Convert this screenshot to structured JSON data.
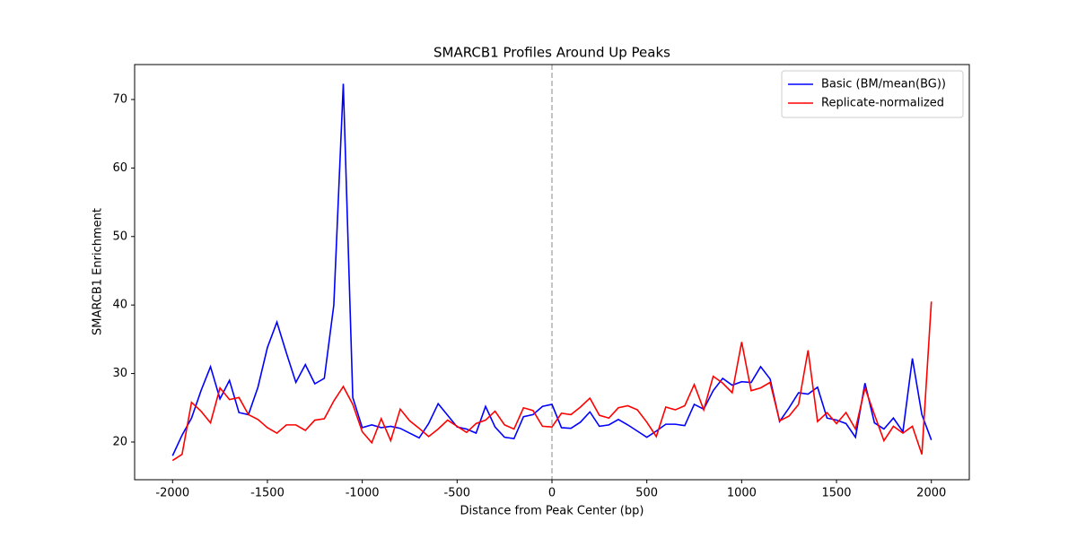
{
  "chart_data": {
    "type": "line",
    "title": "SMARCB1 Profiles Around Up Peaks",
    "x_label": "Distance from Peak Center (bp)",
    "y_label": "SMARCB1 Enrichment",
    "x": [
      -2000,
      -1950,
      -1900,
      -1850,
      -1800,
      -1750,
      -1700,
      -1650,
      -1600,
      -1550,
      -1500,
      -1450,
      -1400,
      -1350,
      -1300,
      -1250,
      -1200,
      -1150,
      -1100,
      -1050,
      -1000,
      -950,
      -900,
      -850,
      -800,
      -750,
      -700,
      -650,
      -600,
      -550,
      -500,
      -450,
      -400,
      -350,
      -300,
      -250,
      -200,
      -150,
      -100,
      -50,
      0,
      50,
      100,
      150,
      200,
      250,
      300,
      350,
      400,
      450,
      500,
      550,
      600,
      650,
      700,
      750,
      800,
      850,
      900,
      950,
      1000,
      1050,
      1100,
      1150,
      1200,
      1250,
      1300,
      1350,
      1400,
      1450,
      1500,
      1550,
      1600,
      1650,
      1700,
      1750,
      1800,
      1850,
      1900,
      1950,
      2000
    ],
    "series": [
      {
        "name": "Basic (BM/mean(BG))",
        "color": "#0000ff",
        "values": [
          18,
          21,
          23.5,
          27.5,
          31,
          26.3,
          29,
          24.3,
          24,
          28,
          33.8,
          37.5,
          33,
          28.7,
          31.3,
          28.5,
          29.3,
          40,
          72.3,
          26.5,
          22.1,
          22.5,
          22.1,
          22.3,
          22,
          21.3,
          20.6,
          22.7,
          25.6,
          23.9,
          22.2,
          21.9,
          21.3,
          25.2,
          22.2,
          20.7,
          20.5,
          23.7,
          24,
          25.2,
          25.5,
          22.1,
          22,
          22.9,
          24.4,
          22.3,
          22.5,
          23.3,
          22.5,
          21.6,
          20.7,
          21.6,
          22.6,
          22.6,
          22.4,
          25.5,
          24.8,
          27.5,
          29.3,
          28.3,
          28.8,
          28.7,
          31,
          29.2,
          23,
          25,
          27.2,
          27,
          28,
          23.5,
          23.2,
          22.7,
          20.7,
          28.6,
          22.8,
          21.9,
          23.5,
          21.5,
          32.2,
          24,
          20.3
        ]
      },
      {
        "name": "Replicate-normalized",
        "color": "#ff0000",
        "values": [
          17.3,
          18.2,
          25.8,
          24.5,
          22.8,
          27.9,
          26.2,
          26.5,
          24,
          23.3,
          22.1,
          21.3,
          22.5,
          22.5,
          21.7,
          23.2,
          23.4,
          26,
          28.1,
          25.5,
          21.5,
          19.9,
          23.4,
          20.2,
          24.8,
          23.1,
          22,
          20.8,
          21.9,
          23.2,
          22.3,
          21.4,
          22.7,
          23.2,
          24.5,
          22.5,
          21.9,
          25,
          24.6,
          22.3,
          22.2,
          24.2,
          24,
          25.1,
          26.4,
          23.9,
          23.5,
          25,
          25.3,
          24.7,
          22.9,
          20.8,
          25.1,
          24.7,
          25.3,
          28.4,
          24.7,
          29.6,
          28.6,
          27.2,
          34.6,
          27.5,
          27.9,
          28.7,
          23.1,
          23.8,
          25.5,
          33.4,
          23,
          24.3,
          22.7,
          24.3,
          21.9,
          27.9,
          24,
          20.2,
          22.3,
          21.3,
          22.3,
          18.2,
          40.5
        ]
      }
    ],
    "xlim": [
      -2200,
      2200
    ],
    "ylim": [
      14.5,
      75.1
    ],
    "xticks": [
      -2000,
      -1500,
      -1000,
      -500,
      0,
      500,
      1000,
      1500,
      2000
    ],
    "yticks": [
      20,
      30,
      40,
      50,
      60,
      70
    ],
    "vline_x": 0,
    "legend": "upper right",
    "grid": false
  }
}
